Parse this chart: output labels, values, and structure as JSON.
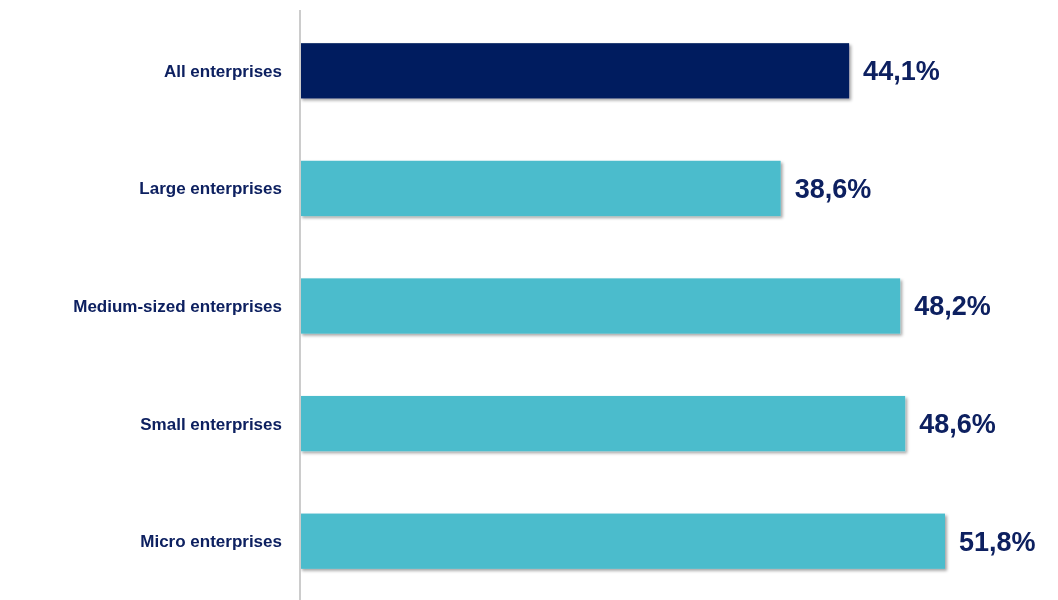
{
  "chart_data": {
    "type": "bar",
    "orientation": "horizontal",
    "categories": [
      "All enterprises",
      "Large enterprises",
      "Medium-sized enterprises",
      "Small enterprises",
      "Micro enterprises"
    ],
    "values": [
      44.1,
      38.6,
      48.2,
      48.6,
      51.8
    ],
    "colors": [
      "#001f5f",
      "#4bbccc",
      "#4bbccc",
      "#4bbccc",
      "#4bbccc"
    ],
    "value_labels": [
      "44,1%",
      "38,6%",
      "48,2%",
      "48,6%",
      "51,8%"
    ]
  }
}
